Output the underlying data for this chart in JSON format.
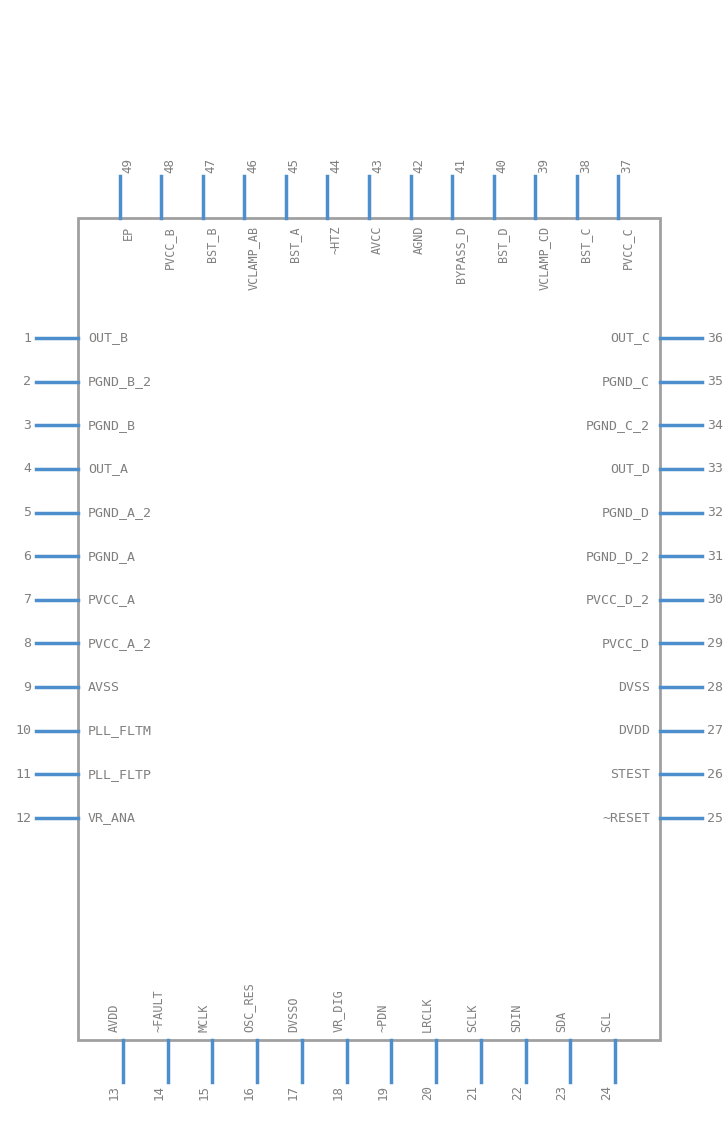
{
  "bg_color": "#ffffff",
  "body_edge_color": "#a0a0a0",
  "pin_color": "#4d8fcc",
  "text_color": "#808080",
  "left_pins": [
    {
      "num": 1,
      "name": "OUT_B"
    },
    {
      "num": 2,
      "name": "PGND_B_2"
    },
    {
      "num": 3,
      "name": "PGND_B"
    },
    {
      "num": 4,
      "name": "OUT_A"
    },
    {
      "num": 5,
      "name": "PGND_A_2"
    },
    {
      "num": 6,
      "name": "PGND_A"
    },
    {
      "num": 7,
      "name": "PVCC_A"
    },
    {
      "num": 8,
      "name": "PVCC_A_2"
    },
    {
      "num": 9,
      "name": "AVSS"
    },
    {
      "num": 10,
      "name": "PLL_FLTM"
    },
    {
      "num": 11,
      "name": "PLL_FLTP"
    },
    {
      "num": 12,
      "name": "VR_ANA"
    }
  ],
  "right_pins": [
    {
      "num": 36,
      "name": "OUT_C"
    },
    {
      "num": 35,
      "name": "PGND_C"
    },
    {
      "num": 34,
      "name": "PGND_C_2"
    },
    {
      "num": 33,
      "name": "OUT_D"
    },
    {
      "num": 32,
      "name": "PGND_D"
    },
    {
      "num": 31,
      "name": "PGND_D_2"
    },
    {
      "num": 30,
      "name": "PVCC_D_2"
    },
    {
      "num": 29,
      "name": "PVCC_D"
    },
    {
      "num": 28,
      "name": "DVSS"
    },
    {
      "num": 27,
      "name": "DVDD"
    },
    {
      "num": 26,
      "name": "STEST"
    },
    {
      "num": 25,
      "name": "~RESET"
    }
  ],
  "top_pins": [
    {
      "num": 49,
      "name": "EP"
    },
    {
      "num": 48,
      "name": "PVCC_B"
    },
    {
      "num": 47,
      "name": "BST_B"
    },
    {
      "num": 46,
      "name": "VCLAMP_AB"
    },
    {
      "num": 45,
      "name": "BST_A"
    },
    {
      "num": 44,
      "name": "~HTZ"
    },
    {
      "num": 43,
      "name": "AVCC"
    },
    {
      "num": 42,
      "name": "AGND"
    },
    {
      "num": 41,
      "name": "BYPASS_D"
    },
    {
      "num": 40,
      "name": "BST_D"
    },
    {
      "num": 39,
      "name": "VCLAMP_CD"
    },
    {
      "num": 38,
      "name": "BST_C"
    },
    {
      "num": 37,
      "name": "PVCC_C"
    }
  ],
  "bottom_pins": [
    {
      "num": 13,
      "name": "AVDD"
    },
    {
      "num": 14,
      "name": "~FAULT"
    },
    {
      "num": 15,
      "name": "MCLK"
    },
    {
      "num": 16,
      "name": "OSC_RES"
    },
    {
      "num": 17,
      "name": "DVSSO"
    },
    {
      "num": 18,
      "name": "VR_DIG"
    },
    {
      "num": 19,
      "name": "~PDN"
    },
    {
      "num": 20,
      "name": "LRCLK"
    },
    {
      "num": 21,
      "name": "SCLK"
    },
    {
      "num": 22,
      "name": "SDIN"
    },
    {
      "num": 23,
      "name": "SDA"
    },
    {
      "num": 24,
      "name": "SCL"
    }
  ]
}
